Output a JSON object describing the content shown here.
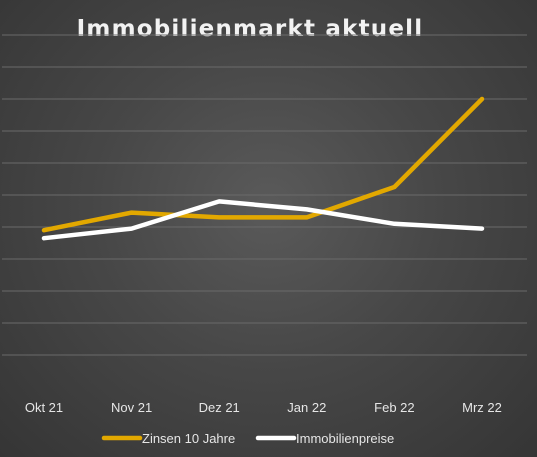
{
  "chart_data": {
    "type": "line",
    "title": "Immobilienmarkt aktuell",
    "categories": [
      "Okt 21",
      "Nov 21",
      "Dez 21",
      "Jan 22",
      "Feb 22",
      "Mrz 22"
    ],
    "series": [
      {
        "name": "Zinsen 10 Jahre",
        "color": "#E2A800",
        "values": [
          4.9,
          5.45,
          5.3,
          5.3,
          6.25,
          9.0
        ]
      },
      {
        "name": "Immobilienpreise",
        "color": "#FFFFFF",
        "values": [
          4.65,
          4.95,
          5.8,
          5.55,
          5.1,
          4.95
        ]
      }
    ],
    "ylim": [
      0,
      11
    ],
    "grid": true,
    "legend": "bottom",
    "xlabel": "",
    "ylabel": ""
  }
}
